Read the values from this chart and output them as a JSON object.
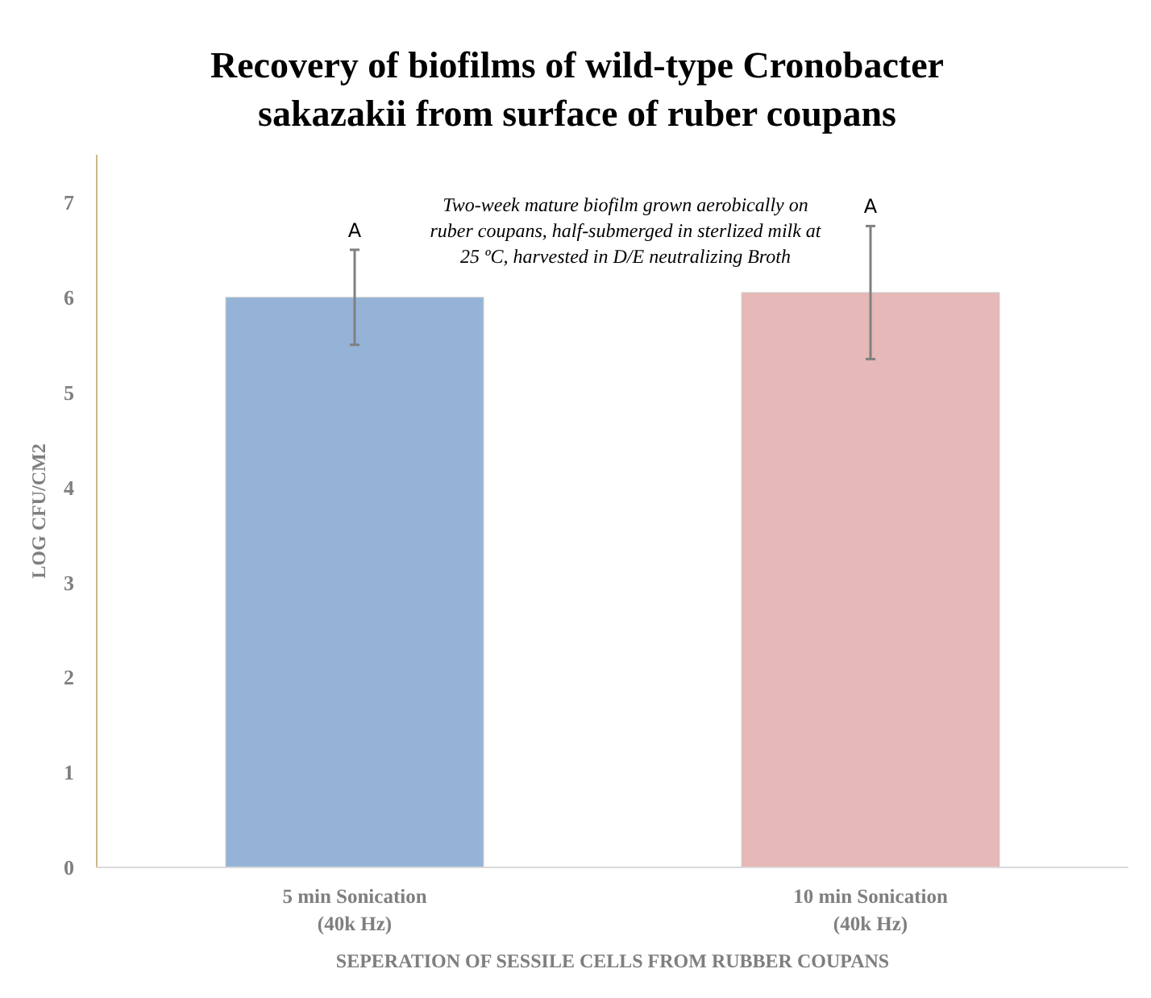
{
  "chart_data": {
    "type": "bar",
    "title": "Recovery of biofilms of wild-type Cronobacter\nsakazakii from surface of ruber coupans",
    "xlabel": "SEPERATION OF SESSILE CELLS FROM RUBBER COUPANS",
    "ylabel": "LOG CFU/CM2",
    "categories": [
      "5 min Sonication\n(40k Hz)",
      "10 min Sonication\n(40k Hz)"
    ],
    "values": [
      6.0,
      6.05
    ],
    "colors": [
      "#95b3d7",
      "#e6b8b7"
    ],
    "errors": [
      0.5,
      0.7
    ],
    "ylim": [
      0,
      7.5
    ],
    "yticks": [
      0,
      1,
      2,
      3,
      4,
      5,
      6,
      7
    ],
    "grid": false,
    "annotations": [
      "Two-week mature biofilm grown aerobically on\nruber coupans, half-submerged in sterlized milk at\n25 ºC, harvested in D/E neutralizing Broth",
      "A",
      "A"
    ]
  }
}
